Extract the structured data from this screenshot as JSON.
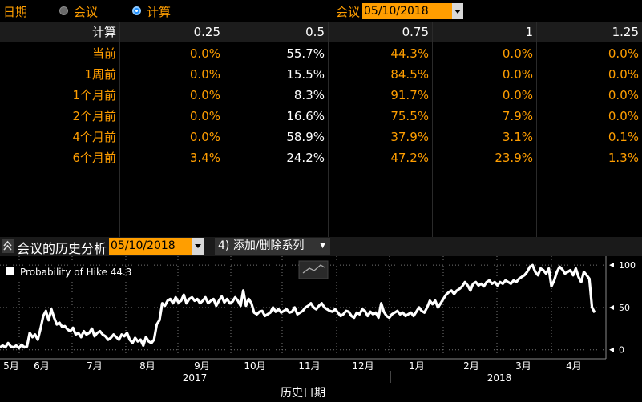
{
  "topbar": {
    "date_label": "日期",
    "radio1_label": "会议",
    "radio2_label": "计算",
    "meeting_label": "会议",
    "meeting_date": "05/10/2018"
  },
  "table": {
    "corner": "计算",
    "columns": [
      "0.25",
      "0.5",
      "0.75",
      "1",
      "1.25"
    ],
    "rows": [
      {
        "label": "当前",
        "values": [
          "0.0%",
          "55.7%",
          "44.3%",
          "0.0%",
          "0.0%"
        ]
      },
      {
        "label": "1周前",
        "values": [
          "0.0%",
          "15.5%",
          "84.5%",
          "0.0%",
          "0.0%"
        ]
      },
      {
        "label": "1个月前",
        "values": [
          "0.0%",
          "8.3%",
          "91.7%",
          "0.0%",
          "0.0%"
        ]
      },
      {
        "label": "2个月前",
        "values": [
          "0.0%",
          "16.6%",
          "75.5%",
          "7.9%",
          "0.0%"
        ]
      },
      {
        "label": "4个月前",
        "values": [
          "0.0%",
          "58.9%",
          "37.9%",
          "3.1%",
          "0.1%"
        ]
      },
      {
        "label": "6个月前",
        "values": [
          "3.4%",
          "24.2%",
          "47.2%",
          "23.9%",
          "1.3%"
        ]
      }
    ]
  },
  "panel": {
    "title": "会议的历史分析",
    "date": "05/10/2018",
    "series_button": "4) 添加/删除系列"
  },
  "chart_data": {
    "type": "line",
    "legend": "Probability of Hike",
    "legend_value": "44.3",
    "xlabel": "历史日期",
    "x_ticks": [
      "5月",
      "6月",
      "7月",
      "8月",
      "9月",
      "10月",
      "11月",
      "12月",
      "1月",
      "2月",
      "3月",
      "4月"
    ],
    "years": [
      "2017",
      "2018"
    ],
    "y_ticks": [
      0,
      50,
      100
    ],
    "ylim": [
      -5,
      103
    ],
    "series": [
      {
        "values": [
          3,
          5,
          3,
          8,
          4,
          3,
          5,
          2,
          6,
          3,
          4,
          20,
          15,
          18,
          12,
          25,
          40,
          46,
          35,
          48,
          38,
          30,
          32,
          27,
          28,
          24,
          22,
          26,
          18,
          20,
          15,
          22,
          18,
          20,
          25,
          16,
          20,
          22,
          18,
          16,
          12,
          14,
          18,
          15,
          12,
          18,
          16,
          20,
          12,
          8,
          14,
          10,
          12,
          5,
          15,
          10,
          8,
          12,
          30,
          35,
          55,
          52,
          58,
          60,
          55,
          62,
          56,
          58,
          65,
          55,
          60,
          62,
          58,
          60,
          55,
          58,
          62,
          55,
          58,
          60,
          52,
          58,
          63,
          56,
          60,
          55,
          57,
          62,
          58,
          52,
          70,
          52,
          60,
          55,
          44,
          42,
          45,
          46,
          40,
          42,
          44,
          50,
          45,
          48,
          44,
          46,
          48,
          44,
          45,
          50,
          42,
          44,
          46,
          50,
          52,
          55,
          50,
          48,
          52,
          55,
          50,
          48,
          46,
          45,
          48,
          44,
          40,
          42,
          46,
          45,
          40,
          38,
          44,
          42,
          48,
          46,
          40,
          45,
          42,
          44,
          38,
          55,
          45,
          40,
          38,
          42,
          44,
          46,
          42,
          44,
          40,
          42,
          44,
          40,
          45,
          50,
          46,
          44,
          50,
          58,
          54,
          58,
          50,
          55,
          60,
          65,
          68,
          70,
          66,
          70,
          72,
          75,
          80,
          76,
          70,
          78,
          80,
          76,
          78,
          75,
          80,
          82,
          78,
          80,
          76,
          80,
          78,
          82,
          80,
          78,
          82,
          80,
          84,
          86,
          88,
          92,
          98,
          100,
          92,
          88,
          96,
          94,
          90,
          96,
          75,
          82,
          92,
          98,
          95,
          90,
          92,
          94,
          88,
          96,
          86,
          80,
          92,
          88,
          84,
          50,
          44
        ]
      }
    ]
  }
}
